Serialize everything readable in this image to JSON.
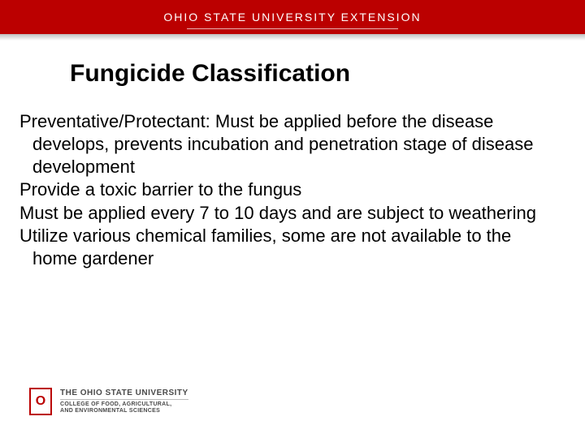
{
  "banner": {
    "text": "OHIO STATE UNIVERSITY EXTENSION",
    "bg_color": "#bb0000",
    "text_color": "#ffffff"
  },
  "title": "Fungicide Classification",
  "body": {
    "p1": "Preventative/Protectant: Must be applied before the disease develops, prevents incubation and penetration stage of disease development",
    "p2": "Provide a toxic barrier to the fungus",
    "p3": "Must be applied every 7 to 10 days and are subject to weathering",
    "p4": "Utilize various chemical families, some are not available to the home gardener"
  },
  "footer": {
    "shield_letter": "O",
    "university": "THE OHIO STATE UNIVERSITY",
    "college_l1": "COLLEGE OF FOOD, AGRICULTURAL,",
    "college_l2": "AND ENVIRONMENTAL SCIENCES"
  },
  "styling": {
    "slide_bg": "#ffffff",
    "title_fontsize": 30,
    "body_fontsize": 22,
    "brand_red": "#bb0000"
  }
}
